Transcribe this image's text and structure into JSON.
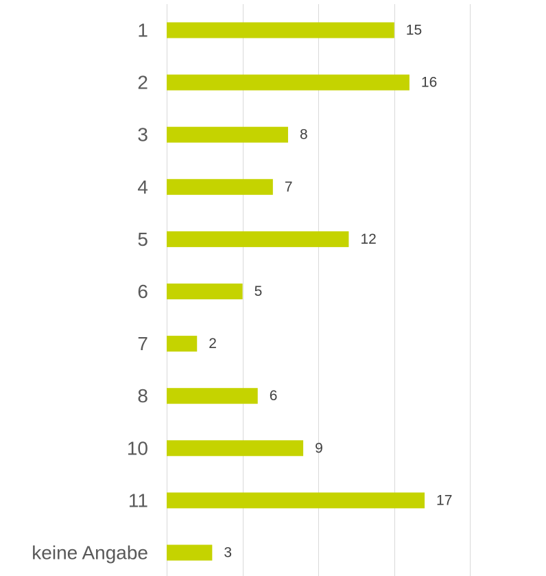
{
  "chart_data": {
    "type": "bar",
    "orientation": "horizontal",
    "categories": [
      "1",
      "2",
      "3",
      "4",
      "5",
      "6",
      "7",
      "8",
      "10",
      "11",
      "keine Angabe"
    ],
    "values": [
      15,
      16,
      8,
      7,
      12,
      5,
      2,
      6,
      9,
      17,
      3
    ],
    "title": "",
    "xlabel": "",
    "ylabel": "",
    "xlim": [
      0,
      20
    ],
    "grid": true,
    "data_labels": true,
    "legend": "none",
    "colors": {
      "bar": "#c5d300",
      "grid": "#d9d9d9",
      "category_text": "#595959",
      "value_text": "#404040"
    }
  }
}
